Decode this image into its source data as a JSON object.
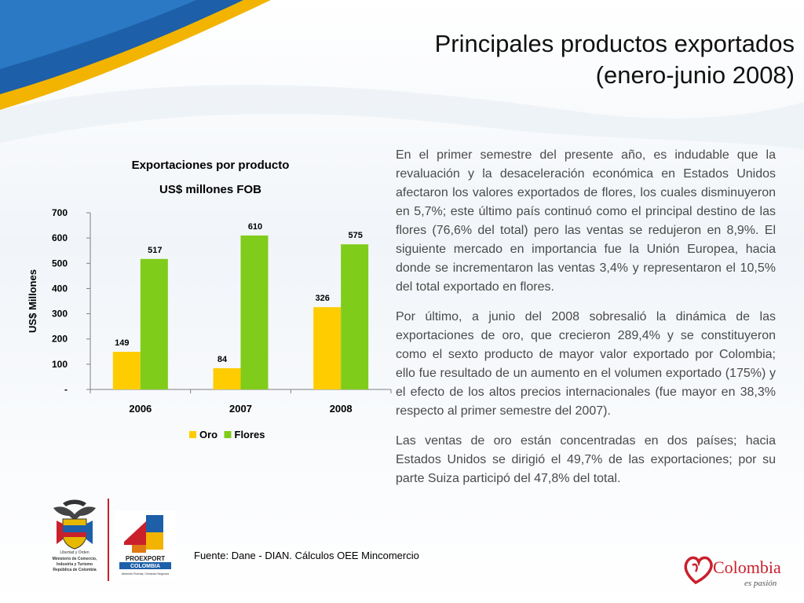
{
  "slide": {
    "title_line1": "Principales productos exportados",
    "title_line2": "(enero-junio 2008)"
  },
  "chart_data": {
    "type": "bar",
    "title": "Exportaciones por producto",
    "subtitle": "US$ millones FOB",
    "ylabel": "US$ Millones",
    "xlabel": "",
    "categories": [
      "2006",
      "2007",
      "2008"
    ],
    "series": [
      {
        "name": "Oro",
        "values": [
          149,
          84,
          326
        ],
        "color": "#ffcc00",
        "labels": [
          "149",
          "84",
          "326"
        ]
      },
      {
        "name": "Flores",
        "values": [
          517,
          610,
          575
        ],
        "color": "#80cc1a",
        "labels": [
          "517",
          "610",
          "575"
        ]
      }
    ],
    "ylim": [
      0,
      700
    ],
    "yticks": [
      0,
      100,
      200,
      300,
      400,
      500,
      600,
      700
    ],
    "ytick_labels": [
      "-",
      "100",
      "200",
      "300",
      "400",
      "500",
      "600",
      "700"
    ],
    "grid": false,
    "legend_position": "bottom"
  },
  "paragraphs": [
    "En el primer semestre del presente año, es indudable que la revaluación y la desaceleración económica en Estados Unidos afectaron los valores exportados de flores, los cuales disminuyeron en 5,7%; este último país continuó como el principal destino de las flores (76,6% del total) pero las ventas se redujeron en 8,9%. El siguiente mercado en importancia fue la Unión Europea, hacia donde se incrementaron las ventas 3,4% y representaron el 10,5% del total exportado en flores.",
    "Por último, a junio del 2008 sobresalió la dinámica de las exportaciones de oro, que crecieron 289,4% y se constituyeron como el sexto producto de mayor valor exportado por Colombia; ello fue resultado de un aumento en el volumen exportado (175%) y el efecto de los altos precios internacionales (fue mayor en 38,3% respecto al primer semestre del 2007).",
    "Las ventas de oro están concentradas en dos países; hacia Estados Unidos se dirigió el 49,7% de las exportaciones; por su parte Suiza participó del 47,8% del total."
  ],
  "source": "Fuente: Dane - DIAN. Cálculos OEE Mincomercio",
  "logos": {
    "ministry_lines": [
      "Libertad y Orden",
      "Ministerio de Comercio,",
      "Industria y Turismo",
      "República de Colombia"
    ],
    "proexport_name": "PROEXPORT",
    "proexport_country": "COLOMBIA",
    "proexport_tagline": "Abriendo Puertas, Cerrando Negocios",
    "colombia_brand": "Colombia",
    "colombia_tagline": "es pasión"
  },
  "colors": {
    "banner_blue": "#1d5fa8",
    "banner_gold": "#f2b400",
    "brand_red": "#c9202c"
  }
}
